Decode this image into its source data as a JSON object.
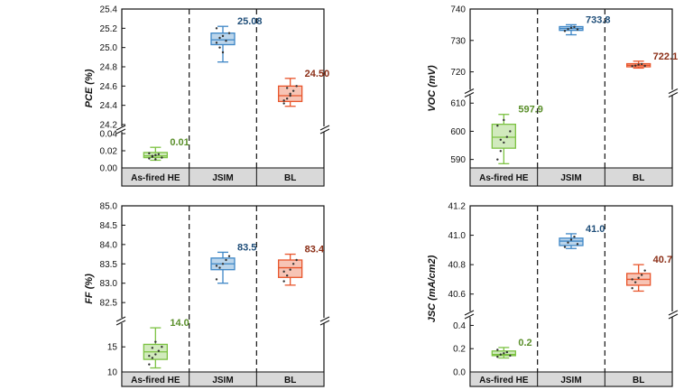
{
  "colors": {
    "green": "#7cc242",
    "blue": "#3d86c6",
    "red": "#e8552b",
    "value_green": "#5a8f2a",
    "value_blue": "#1f4e79",
    "value_red": "#8b2e16",
    "strip": "#d9d9d9"
  },
  "chart_data": [
    {
      "type": "box",
      "ylabel": "PCE (%)",
      "categories": [
        "As-fired HE",
        "JSIM",
        "BL"
      ],
      "colors": [
        "#7cc242",
        "#3d86c6",
        "#e8552b"
      ],
      "axis_break": {
        "lower": [
          0.0,
          0.04
        ],
        "upper": [
          24.2,
          25.4
        ]
      },
      "lower_ticks": [
        "0.00",
        "0.02",
        "0.04"
      ],
      "upper_ticks": [
        "24.2",
        "24.4",
        "24.6",
        "24.8",
        "25.0",
        "25.2",
        "25.4"
      ],
      "boxes": [
        {
          "min": 0.009,
          "q1": 0.012,
          "median": 0.014,
          "q3": 0.018,
          "max": 0.024,
          "label": "0.01",
          "points": [
            0.011,
            0.013,
            0.015,
            0.016,
            0.012,
            0.017,
            0.014,
            0.01
          ]
        },
        {
          "min": 24.85,
          "q1": 25.03,
          "median": 25.08,
          "q3": 25.15,
          "max": 25.22,
          "label": "25.08",
          "points": [
            25.05,
            25.1,
            25.12,
            25.07,
            25.15,
            25.2,
            25.0,
            24.95
          ]
        },
        {
          "min": 24.39,
          "q1": 24.44,
          "median": 24.5,
          "q3": 24.6,
          "max": 24.68,
          "label": "24.50",
          "points": [
            24.42,
            24.47,
            24.52,
            24.55,
            24.6,
            24.45,
            24.58,
            24.5
          ]
        }
      ]
    },
    {
      "type": "box",
      "ylabel": "VOC (mV)",
      "categories": [
        "As-fired HE",
        "JSIM",
        "BL"
      ],
      "colors": [
        "#7cc242",
        "#3d86c6",
        "#e8552b"
      ],
      "axis_break": {
        "lower": [
          587,
          612
        ],
        "upper": [
          715,
          740
        ]
      },
      "lower_ticks": [
        "590",
        "600",
        "610"
      ],
      "upper_ticks": [
        "720",
        "730",
        "740"
      ],
      "boxes": [
        {
          "min": 588.5,
          "q1": 594.0,
          "median": 597.9,
          "q3": 602.5,
          "max": 606.0,
          "label": "597.9",
          "points": [
            590,
            593,
            596,
            598,
            600,
            602,
            597,
            604
          ]
        },
        {
          "min": 731.8,
          "q1": 733.2,
          "median": 733.8,
          "q3": 734.4,
          "max": 735.0,
          "label": "733.8",
          "points": [
            733.0,
            733.6,
            734.0,
            734.3,
            733.5
          ]
        },
        {
          "min": 721.2,
          "q1": 721.6,
          "median": 722.1,
          "q3": 722.6,
          "max": 723.4,
          "label": "722.1",
          "points": [
            721.8,
            722.0,
            722.3,
            722.5,
            721.9
          ]
        }
      ]
    },
    {
      "type": "box",
      "ylabel": "FF (%)",
      "categories": [
        "As-fired HE",
        "JSIM",
        "BL"
      ],
      "colors": [
        "#7cc242",
        "#3d86c6",
        "#e8552b"
      ],
      "axis_break": {
        "lower": [
          10,
          19
        ],
        "upper": [
          82.2,
          85.0
        ]
      },
      "lower_ticks": [
        "10",
        "15"
      ],
      "upper_ticks": [
        "82.5",
        "83.0",
        "83.5",
        "84.0",
        "84.5",
        "85.0"
      ],
      "boxes": [
        {
          "min": 10.8,
          "q1": 12.5,
          "median": 14.0,
          "q3": 15.5,
          "max": 18.8,
          "label": "14.0",
          "points": [
            11.5,
            12.8,
            13.5,
            14.2,
            15.0,
            13.2,
            14.8,
            16.0
          ]
        },
        {
          "min": 83.0,
          "q1": 83.35,
          "median": 83.5,
          "q3": 83.65,
          "max": 83.8,
          "label": "83.5",
          "points": [
            83.1,
            83.4,
            83.5,
            83.6,
            83.7,
            83.45
          ]
        },
        {
          "min": 82.95,
          "q1": 83.15,
          "median": 83.4,
          "q3": 83.6,
          "max": 83.75,
          "label": "83.4",
          "points": [
            83.05,
            83.2,
            83.35,
            83.5,
            83.6,
            83.3
          ]
        }
      ]
    },
    {
      "type": "box",
      "ylabel": "JSC (mA/cm2)",
      "categories": [
        "As-fired HE",
        "JSIM",
        "BL"
      ],
      "colors": [
        "#7cc242",
        "#3d86c6",
        "#e8552b"
      ],
      "axis_break": {
        "lower": [
          0.0,
          0.45
        ],
        "upper": [
          40.5,
          41.2
        ]
      },
      "lower_ticks": [
        "0.0",
        "0.2",
        "0.4"
      ],
      "upper_ticks": [
        "40.6",
        "40.8",
        "41.0",
        "41.2"
      ],
      "boxes": [
        {
          "min": 0.12,
          "q1": 0.14,
          "median": 0.15,
          "q3": 0.18,
          "max": 0.21,
          "label": "0.2",
          "points": [
            0.13,
            0.15,
            0.16,
            0.17,
            0.14,
            0.19
          ]
        },
        {
          "min": 40.91,
          "q1": 40.93,
          "median": 40.96,
          "q3": 40.98,
          "max": 41.01,
          "label": "41.0",
          "points": [
            40.92,
            40.95,
            40.97,
            40.99,
            40.94
          ]
        },
        {
          "min": 40.62,
          "q1": 40.66,
          "median": 40.7,
          "q3": 40.74,
          "max": 40.8,
          "label": "40.7",
          "points": [
            40.64,
            40.68,
            40.71,
            40.73,
            40.76,
            40.7
          ]
        }
      ]
    }
  ]
}
